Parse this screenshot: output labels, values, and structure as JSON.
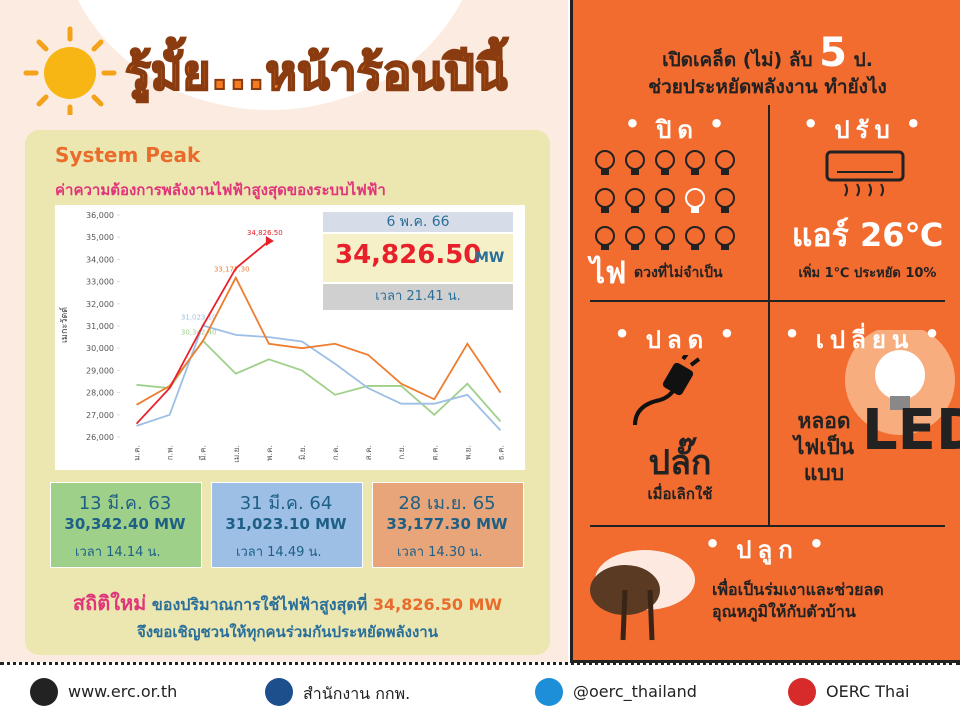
{
  "header": {
    "title": "รู้มั้ย...หน้าร้อนปีนี้"
  },
  "panel": {
    "title": "System Peak",
    "subtitle": "ค่าความต้องการพลังงานไฟฟ้าสูงสุดของระบบไฟฟ้า"
  },
  "chart_data": {
    "type": "line",
    "ylabel": "เมกะวัตต์",
    "categories": [
      "ม.ค.",
      "ก.พ.",
      "มี.ค.",
      "เม.ย.",
      "พ.ค.",
      "มิ.ย.",
      "ก.ค.",
      "ส.ค.",
      "ก.ย.",
      "ต.ค.",
      "พ.ย.",
      "ธ.ค."
    ],
    "series": [
      {
        "color": "#9fd08a",
        "values": [
          28350,
          28200,
          30342.4,
          28850,
          29500,
          29000,
          27900,
          28300,
          28300,
          27000,
          28400,
          26700
        ],
        "value_labels": [
          null,
          null,
          "30,342.40",
          null,
          null,
          null,
          null,
          null,
          null,
          null,
          null,
          null
        ]
      },
      {
        "color": "#9dbfe6",
        "values": [
          26500,
          27000,
          31023.1,
          30600,
          30500,
          30300,
          29300,
          28200,
          27500,
          27500,
          27900,
          26300
        ],
        "value_labels": [
          null,
          null,
          "31,023.10",
          null,
          null,
          null,
          null,
          null,
          null,
          null,
          null,
          null
        ]
      },
      {
        "color": "#ee7d31",
        "values": [
          27450,
          28300,
          30300,
          33177.3,
          30200,
          30000,
          30200,
          29700,
          28400,
          27700,
          30200,
          28000
        ],
        "value_labels": [
          null,
          null,
          null,
          "33,177.30",
          null,
          null,
          null,
          null,
          null,
          null,
          null,
          null
        ]
      },
      {
        "color": "#e8202a",
        "values": [
          26600,
          28200,
          31000,
          33600,
          34826.5,
          null,
          null,
          null,
          null,
          null,
          null,
          null
        ],
        "value_labels": [
          null,
          null,
          null,
          null,
          "34,826.50",
          null,
          null,
          null,
          null,
          null,
          null,
          null
        ]
      }
    ],
    "ylim": [
      26000,
      36000
    ],
    "yticks": [
      {
        "value": 26000,
        "label": "26,000"
      },
      {
        "value": 27000,
        "label": "27,000"
      },
      {
        "value": 28000,
        "label": "28,000"
      },
      {
        "value": 29000,
        "label": "29,000"
      },
      {
        "value": 30000,
        "label": "30,000"
      },
      {
        "value": 31000,
        "label": "31,000"
      },
      {
        "value": 32000,
        "label": "32,000"
      },
      {
        "value": 33000,
        "label": "33,000"
      },
      {
        "value": 34000,
        "label": "34,000"
      },
      {
        "value": 35000,
        "label": "35,000"
      },
      {
        "value": 36000,
        "label": "36,000"
      }
    ],
    "grid": false
  },
  "peak": {
    "date": "6 พ.ค. 66",
    "value": "34,826.50",
    "unit": "MW",
    "time": "เวลา 21.41 น."
  },
  "records": [
    {
      "date": "13 มี.ค. 63",
      "value": "30,342.40 MW",
      "time": "เวลา 14.14 น."
    },
    {
      "date": "31 มี.ค. 64",
      "value": "31,023.10 MW",
      "time": "เวลา 14.49 น."
    },
    {
      "date": "28 เม.ย. 65",
      "value": "33,177.30 MW",
      "time": "เวลา 14.30 น."
    }
  ],
  "note": {
    "highlight": "สถิติใหม่",
    "text": "ของปริมาณการใช้ไฟฟ้าสูงสุดที่",
    "value": "34,826.50 MW",
    "line2": "จึงขอเชิญชวนให้ทุกคนร่วมกันประหยัดพลังงาน"
  },
  "tips": {
    "title_line1": "เปิดเคล็ด (ไม่) ลับ",
    "number": "5",
    "title_unit": "ป.",
    "title_line2": "ช่วยประหยัดพลังงาน ทำยังไง",
    "sections": [
      {
        "heading": "ปิด",
        "big": "ไฟ",
        "text": "ดวงที่ไม่จำเป็น"
      },
      {
        "heading": "ปรับ",
        "big": "แอร์ 26℃",
        "text": "เพิ่ม 1℃ ประหยัด 10%"
      },
      {
        "heading": "ปลด",
        "big": "ปลั๊ก",
        "text": "เมื่อเลิกใช้"
      },
      {
        "heading": "เปลี่ยน",
        "lines": [
          "หลอด",
          "ไฟเป็น",
          "แบบ"
        ],
        "big": "LED"
      },
      {
        "heading": "ปลูก",
        "lines": [
          "เพื่อเป็นร่มเงาและช่วยลด",
          "อุณหภูมิให้กับตัวบ้าน"
        ]
      }
    ]
  },
  "footer": [
    "www.erc.or.th",
    "สำนักงาน กกพ.",
    "@oerc_thailand",
    "OERC Thai"
  ]
}
